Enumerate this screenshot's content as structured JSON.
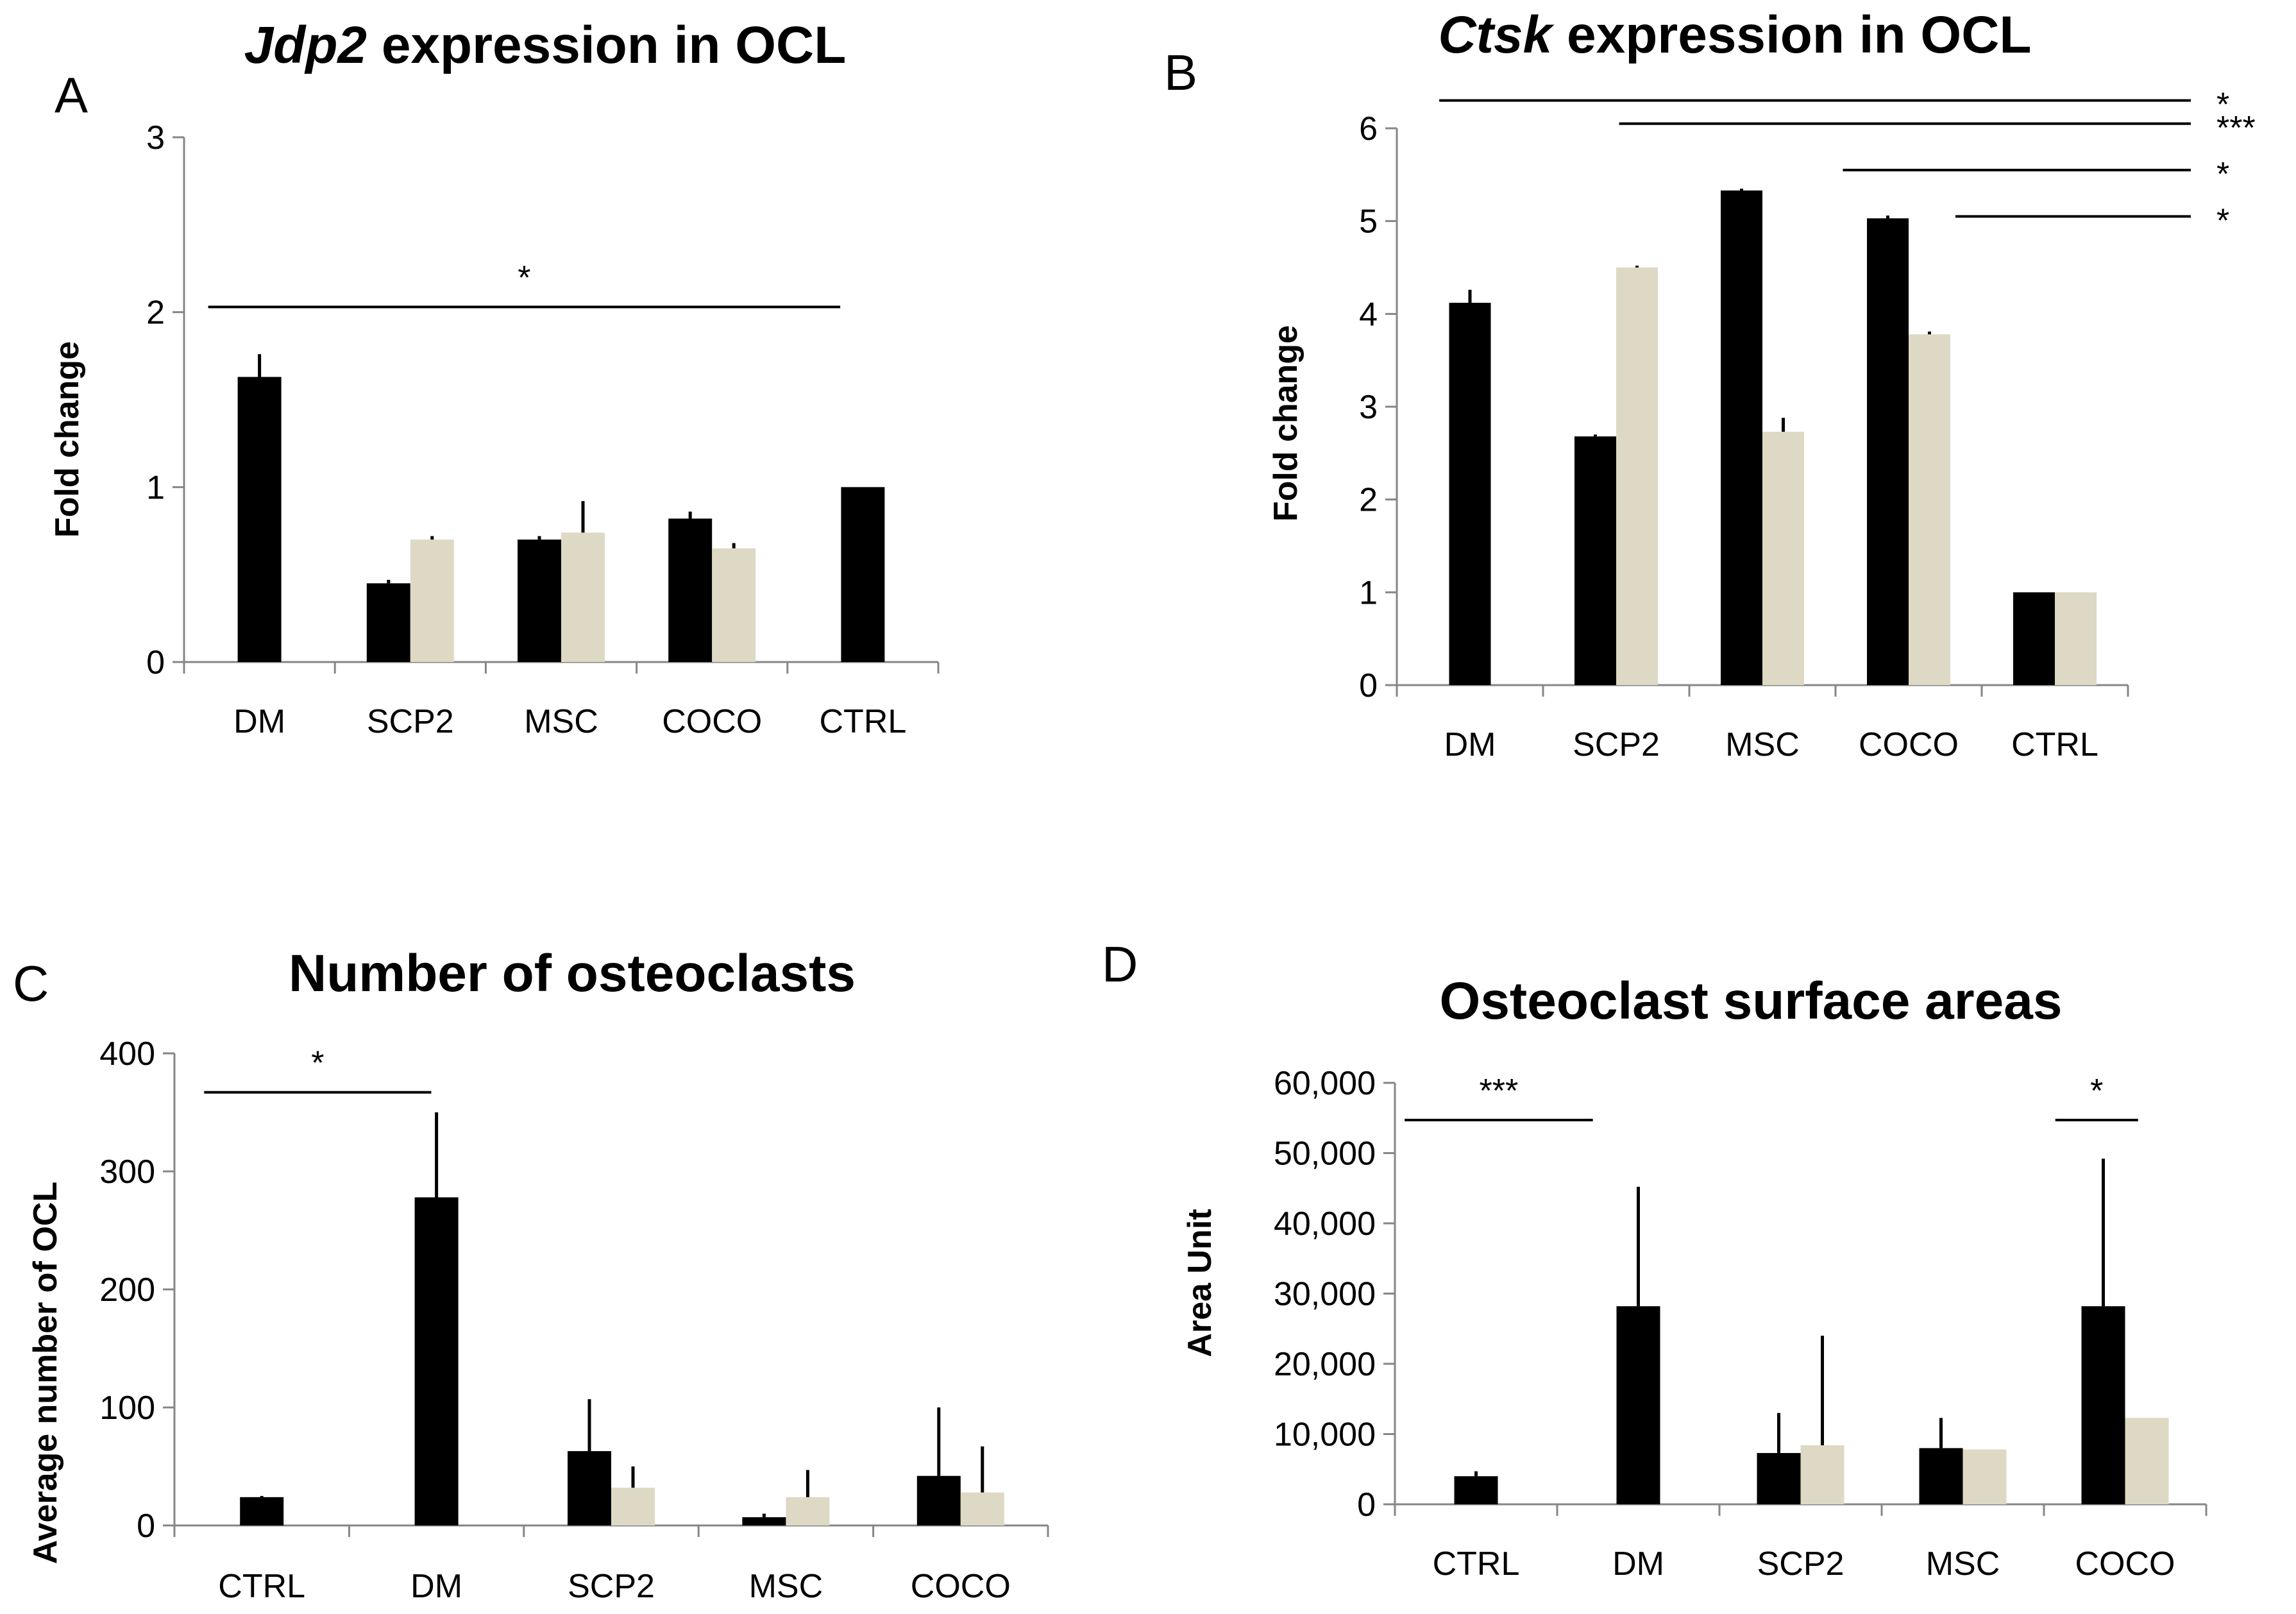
{
  "colors": {
    "series1": "#000000",
    "series2": "#ddd9c4",
    "axis": "#868686",
    "text": "#000000"
  },
  "chart_data": [
    {
      "id": "A",
      "type": "bar",
      "panel_letter": "A",
      "title": "expression in OCL",
      "title_gene": "Jdp2",
      "xlabel": "",
      "ylabel": "Fold change",
      "ylim": [
        0,
        3
      ],
      "yticks": [
        0,
        1,
        2,
        3
      ],
      "ytick_labels": [
        "0",
        "1",
        "2",
        "3"
      ],
      "categories": [
        "DM",
        "SCP2",
        "MSC",
        "COCO",
        "CTRL"
      ],
      "series": [
        {
          "name": "series 1",
          "values": [
            1.63,
            0.45,
            0.7,
            0.82,
            1.0
          ],
          "errors": [
            0.13,
            0.02,
            0.02,
            0.04,
            0
          ]
        },
        {
          "name": "series 2",
          "values": [
            null,
            0.7,
            0.74,
            0.65,
            null
          ],
          "errors": [
            null,
            0.02,
            0.18,
            0.03,
            null
          ]
        }
      ],
      "annotations": [
        {
          "from": 0.16,
          "to": 4.35,
          "y": 2.03,
          "label": "*"
        }
      ]
    },
    {
      "id": "B",
      "type": "bar",
      "panel_letter": "B",
      "title": "expression in OCL",
      "title_gene": "Ctsk",
      "xlabel": "",
      "ylabel": "Fold change",
      "ylim": [
        0,
        6
      ],
      "yticks": [
        0,
        1,
        2,
        3,
        4,
        5,
        6
      ],
      "ytick_labels": [
        "0",
        "1",
        "2",
        "3",
        "4",
        "5",
        "6"
      ],
      "categories": [
        "DM",
        "SCP2",
        "MSC",
        "COCO",
        "CTRL"
      ],
      "series": [
        {
          "name": "series 1",
          "values": [
            4.12,
            2.68,
            5.33,
            5.03,
            1.0
          ],
          "errors": [
            0.14,
            0.02,
            0.02,
            0.03,
            0
          ]
        },
        {
          "name": "series 2",
          "values": [
            null,
            4.5,
            2.73,
            3.78,
            1.0
          ],
          "errors": [
            null,
            0.02,
            0.15,
            0.03,
            0
          ]
        }
      ],
      "annotations": [
        {
          "from": 0.29,
          "to": 5.43,
          "y": 6.3,
          "label": "*"
        },
        {
          "from": 1.52,
          "to": 5.43,
          "y": 6.05,
          "label": "***"
        },
        {
          "from": 3.05,
          "to": 5.43,
          "y": 5.55,
          "label": "*"
        },
        {
          "from": 3.82,
          "to": 5.43,
          "y": 5.05,
          "label": "*"
        }
      ]
    },
    {
      "id": "C",
      "type": "bar",
      "panel_letter": "C",
      "title": "Number of osteoclasts",
      "xlabel": "",
      "ylabel": "Average number of OCL",
      "ylim": [
        0,
        400
      ],
      "yticks": [
        0,
        100,
        200,
        300,
        400
      ],
      "ytick_labels": [
        "0",
        "100",
        "200",
        "300",
        "400"
      ],
      "categories": [
        "CTRL",
        "DM",
        "SCP2",
        "MSC",
        "COCO"
      ],
      "series": [
        {
          "name": "series 1",
          "values": [
            24,
            278,
            63,
            7,
            42
          ],
          "errors": [
            1,
            72,
            44,
            3,
            58
          ]
        },
        {
          "name": "series 2",
          "values": [
            null,
            null,
            32,
            24,
            28
          ],
          "errors": [
            null,
            null,
            18,
            23,
            39
          ]
        }
      ],
      "annotations": [
        {
          "from": 0.17,
          "to": 1.47,
          "y": 367,
          "label": "*"
        }
      ]
    },
    {
      "id": "D",
      "type": "bar",
      "panel_letter": "D",
      "title": "Osteoclast surface areas",
      "xlabel": "",
      "ylabel": "Area Unit",
      "ylim": [
        0,
        60000
      ],
      "yticks": [
        0,
        10000,
        20000,
        30000,
        40000,
        50000,
        60000
      ],
      "ytick_labels": [
        "0",
        "10,000",
        "20,000",
        "30,000",
        "40,000",
        "50,000",
        "60,000"
      ],
      "categories": [
        "CTRL",
        "DM",
        "SCP2",
        "MSC",
        "COCO"
      ],
      "series": [
        {
          "name": "series 1",
          "values": [
            4000,
            28200,
            7300,
            8000,
            28200
          ],
          "errors": [
            700,
            17000,
            5700,
            4300,
            21000
          ]
        },
        {
          "name": "series 2",
          "values": [
            null,
            null,
            8400,
            7800,
            null
          ],
          "errors": [
            null,
            null,
            15600,
            null,
            null
          ]
        }
      ],
      "series2_extra": [
        {
          "category_index": 4,
          "value": 12300
        }
      ],
      "annotations": [
        {
          "from": 0.06,
          "to": 1.22,
          "y": 54700,
          "label": "***"
        },
        {
          "from": 4.07,
          "to": 4.58,
          "y": 54700,
          "label": "*"
        }
      ]
    }
  ]
}
